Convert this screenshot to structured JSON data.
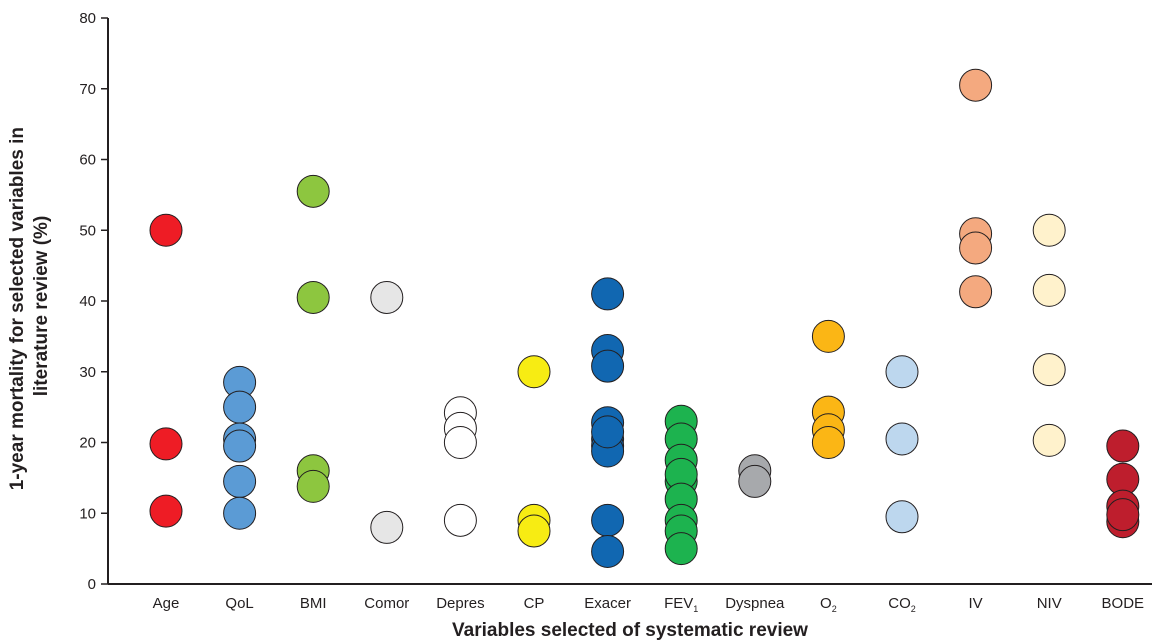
{
  "chart_data": {
    "type": "scatter",
    "xlabel": "Variables selected of systematic review",
    "ylabel_line1": "1-year mortality for selected variables in",
    "ylabel_line2": "literature review (%)",
    "ylim": [
      0,
      80
    ],
    "yticks": [
      0,
      10,
      20,
      30,
      40,
      50,
      60,
      70,
      80
    ],
    "categories": [
      {
        "label": "Age",
        "sub": "",
        "color": "#ee1c25",
        "values": [
          50,
          19.8,
          10.3
        ]
      },
      {
        "label": "QoL",
        "sub": "",
        "color": "#5b9bd5",
        "values": [
          28.5,
          25,
          20.5,
          19.5,
          14.5,
          10
        ]
      },
      {
        "label": "BMI",
        "sub": "",
        "color": "#8dc63f",
        "values": [
          55.5,
          40.5,
          16,
          13.8
        ]
      },
      {
        "label": "Comor",
        "sub": "",
        "color": "#e6e6e6",
        "values": [
          40.5,
          8
        ]
      },
      {
        "label": "Depres",
        "sub": "",
        "color": "#ffffff",
        "values": [
          24.2,
          22,
          20,
          9
        ]
      },
      {
        "label": "CP",
        "sub": "",
        "color": "#f7ec13",
        "values": [
          30,
          9,
          7.5
        ]
      },
      {
        "label": "Exacer",
        "sub": "",
        "color": "#1167b1",
        "values": [
          41,
          33,
          30.8,
          22.8,
          20.5,
          19.5,
          18.8,
          21.5,
          9,
          4.6
        ]
      },
      {
        "label": "FEV",
        "sub": "1",
        "color": "#1db34f",
        "values": [
          23,
          20.5,
          17.5,
          14.5,
          15.5,
          12,
          9,
          7.5,
          5
        ]
      },
      {
        "label": "Dyspnea",
        "sub": "",
        "color": "#a7a9ac",
        "values": [
          16,
          14.5
        ]
      },
      {
        "label": "O",
        "sub": "2",
        "color": "#fbb615",
        "values": [
          35,
          24.3,
          21.8,
          20
        ]
      },
      {
        "label": "CO",
        "sub": "2",
        "color": "#bdd7ee",
        "values": [
          30,
          20.5,
          9.5
        ]
      },
      {
        "label": "IV",
        "sub": "",
        "color": "#f4a97f",
        "values": [
          70.5,
          49.5,
          47.5,
          41.3
        ]
      },
      {
        "label": "NIV",
        "sub": "",
        "color": "#fff2cc",
        "values": [
          50,
          41.5,
          30.3,
          20.3
        ]
      },
      {
        "label": "BODE",
        "sub": "",
        "color": "#be1e2d",
        "values": [
          19.5,
          14.8,
          11,
          8.8,
          9.8
        ]
      }
    ]
  }
}
